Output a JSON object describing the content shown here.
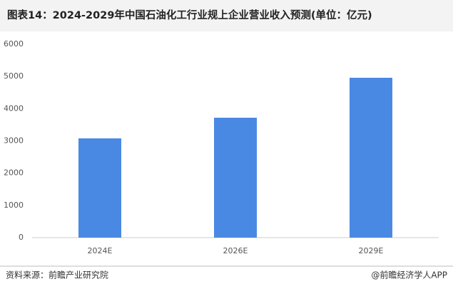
{
  "chart_data": {
    "type": "bar",
    "title": "图表14：2024-2029年中国石油化工行业规上企业营业收入预测(单位：亿元)",
    "categories": [
      "2024E",
      "2026E",
      "2029E"
    ],
    "values": [
      3080,
      3720,
      4960
    ],
    "color": "#4a89e3",
    "ylim": [
      0,
      6000
    ],
    "yticks": [
      0,
      1000,
      2000,
      3000,
      4000,
      5000,
      6000
    ],
    "grid": false,
    "source": "资料来源：前瞻产业研究院",
    "credit": "@前瞻经济学人APP"
  }
}
